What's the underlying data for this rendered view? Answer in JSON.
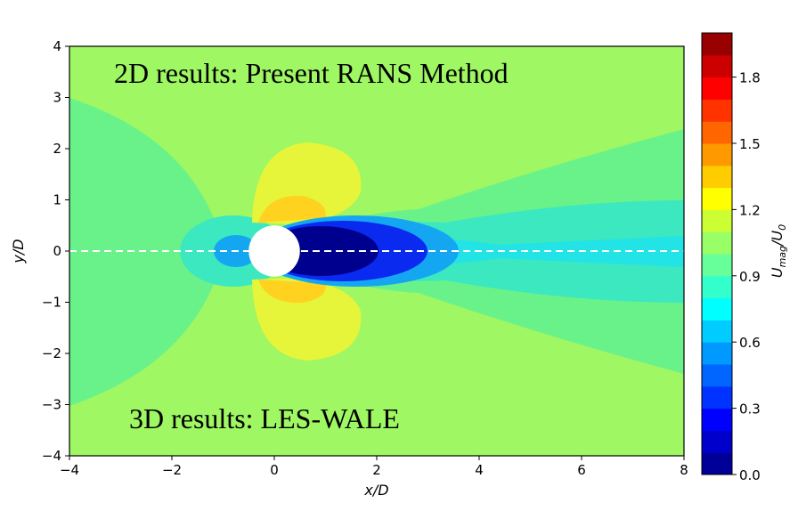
{
  "chart_data": {
    "type": "heatmap",
    "title": "",
    "xlabel": "x/D",
    "ylabel": "y/D",
    "xlim": [
      -4,
      8
    ],
    "ylim": [
      -4,
      4
    ],
    "x_ticks": [
      "−4",
      "−2",
      "0",
      "2",
      "4",
      "6",
      "8"
    ],
    "x_tick_values": [
      -4,
      -2,
      0,
      2,
      4,
      6,
      8
    ],
    "y_ticks": [
      "−4",
      "−3",
      "−2",
      "−1",
      "0",
      "1",
      "2",
      "3",
      "4"
    ],
    "y_tick_values": [
      -4,
      -3,
      -2,
      -1,
      0,
      1,
      2,
      3,
      4
    ],
    "colorbar": {
      "label": "U_mag/U_0",
      "range": [
        0.0,
        2.0
      ],
      "ticks": [
        "0.0",
        "0.3",
        "0.6",
        "0.9",
        "1.2",
        "1.5",
        "1.8"
      ],
      "tick_values": [
        0.0,
        0.3,
        0.6,
        0.9,
        1.2,
        1.5,
        1.8
      ],
      "colormap": "jet",
      "levels": 20
    },
    "cylinder": {
      "center_x": 0,
      "center_y": 0,
      "diameter": 1
    },
    "symmetry_line_y": 0,
    "annotations": {
      "top": "2D results: Present RANS Method",
      "bottom": "3D results: LES-WALE"
    },
    "field_description_values": {
      "freestream": 1.0,
      "wake_min": 0.0,
      "shoulder_max": 1.45
    }
  },
  "colors": {
    "freestream": "#9ef763",
    "outer_band": "#6af28a",
    "inner_band": "#3be8c0",
    "wake_cyan": "#22e3e6",
    "yellow": "#e6f53a",
    "orange": "#ffd21f",
    "deep_blue": "#00008f",
    "blue": "#0a2af0",
    "light_blue": "#15a6f2",
    "dashed_line": "#ffffff"
  }
}
